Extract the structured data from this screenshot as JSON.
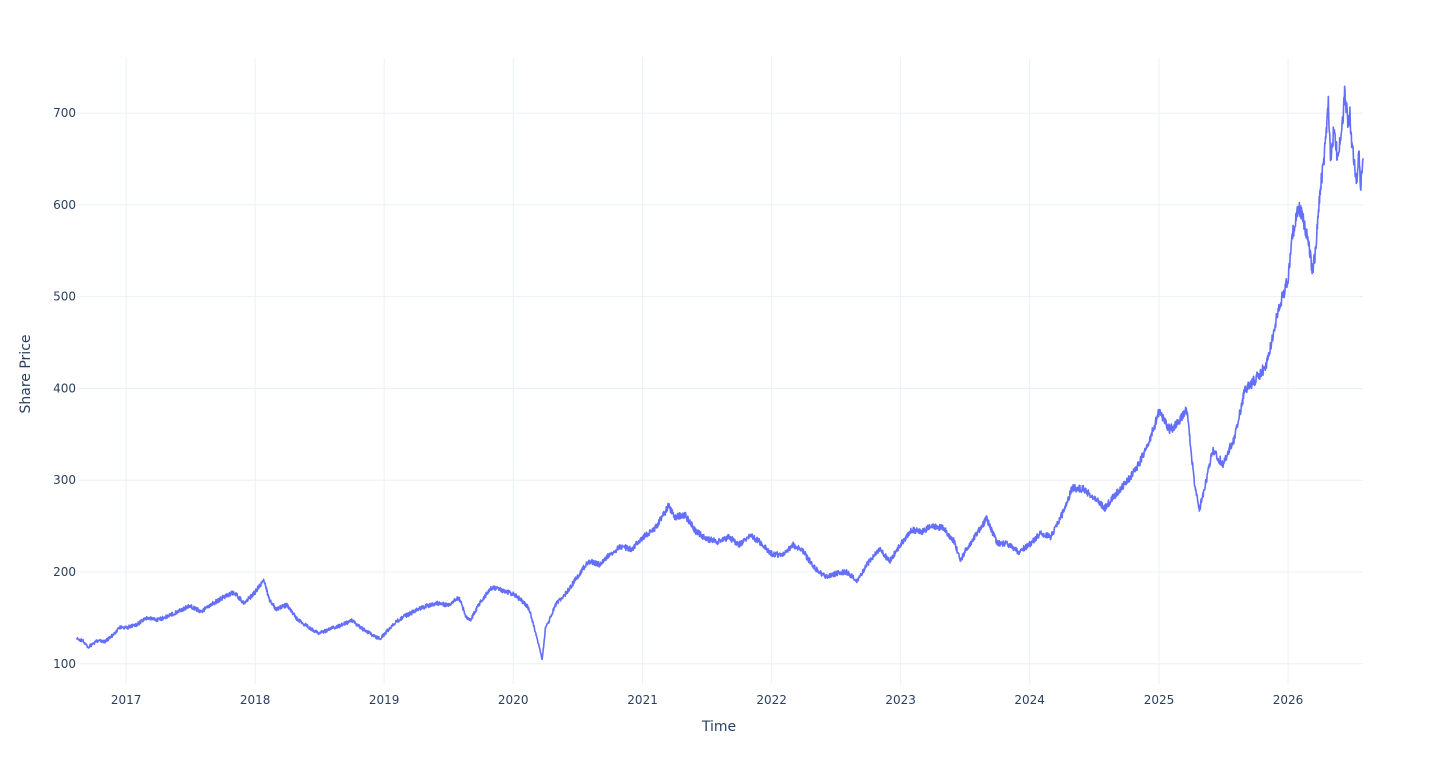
{
  "colors": {
    "series": "#636efa",
    "grid": "#ebf0f8",
    "text": "#2a3f5f",
    "background": "#ffffff"
  },
  "chart_data": {
    "type": "line",
    "title": "",
    "xlabel": "Time",
    "ylabel": "Share Price",
    "grid": true,
    "legend": "none",
    "x_ticks": [
      "2017",
      "2018",
      "2019",
      "2020",
      "2021",
      "2022",
      "2023",
      "2024",
      "2025",
      "2026"
    ],
    "y_ticks": [
      100,
      200,
      300,
      400,
      500,
      600,
      700
    ],
    "xlim": [
      "2016-08-15",
      "2026-08-01"
    ],
    "ylim": [
      78,
      760
    ],
    "series": [
      {
        "name": "",
        "color": "#636efa",
        "x": [
          "2016-08-15",
          "2016-09-01",
          "2016-09-15",
          "2016-10-01",
          "2016-10-15",
          "2016-11-01",
          "2016-11-15",
          "2016-12-01",
          "2016-12-15",
          "2017-01-01",
          "2017-02-01",
          "2017-03-01",
          "2017-04-01",
          "2017-05-01",
          "2017-06-01",
          "2017-07-01",
          "2017-08-01",
          "2017-09-01",
          "2017-10-01",
          "2017-11-01",
          "2017-12-01",
          "2018-01-01",
          "2018-01-25",
          "2018-02-10",
          "2018-03-01",
          "2018-04-01",
          "2018-05-01",
          "2018-06-01",
          "2018-07-01",
          "2018-08-01",
          "2018-09-01",
          "2018-10-01",
          "2018-11-01",
          "2018-12-01",
          "2018-12-20",
          "2019-01-15",
          "2019-02-01",
          "2019-03-01",
          "2019-04-01",
          "2019-05-01",
          "2019-06-01",
          "2019-07-01",
          "2019-08-01",
          "2019-08-20",
          "2019-09-01",
          "2019-10-01",
          "2019-11-01",
          "2019-12-01",
          "2020-01-01",
          "2020-01-15",
          "2020-02-01",
          "2020-02-15",
          "2020-03-01",
          "2020-03-15",
          "2020-03-23",
          "2020-04-01",
          "2020-04-15",
          "2020-05-01",
          "2020-06-01",
          "2020-07-01",
          "2020-08-01",
          "2020-09-01",
          "2020-10-01",
          "2020-11-01",
          "2020-12-01",
          "2021-01-01",
          "2021-02-01",
          "2021-03-01",
          "2021-03-15",
          "2021-04-01",
          "2021-05-01",
          "2021-06-01",
          "2021-07-01",
          "2021-08-01",
          "2021-09-01",
          "2021-10-01",
          "2021-11-01",
          "2021-12-01",
          "2022-01-01",
          "2022-02-01",
          "2022-03-01",
          "2022-04-01",
          "2022-05-01",
          "2022-06-01",
          "2022-07-01",
          "2022-08-01",
          "2022-09-01",
          "2022-10-01",
          "2022-11-01",
          "2022-12-01",
          "2023-01-01",
          "2023-02-01",
          "2023-03-01",
          "2023-04-01",
          "2023-05-01",
          "2023-06-01",
          "2023-06-20",
          "2023-07-01",
          "2023-08-01",
          "2023-09-01",
          "2023-10-01",
          "2023-11-01",
          "2023-12-01",
          "2024-01-01",
          "2024-02-01",
          "2024-03-01",
          "2024-04-01",
          "2024-05-01",
          "2024-06-01",
          "2024-07-01",
          "2024-08-01",
          "2024-09-01",
          "2024-10-01",
          "2024-11-01",
          "2024-12-01",
          "2025-01-01",
          "2025-02-01",
          "2025-03-01",
          "2025-03-20",
          "2025-04-01",
          "2025-04-10",
          "2025-04-25",
          "2025-05-10",
          "2025-06-01",
          "2025-07-01",
          "2025-08-01",
          "2025-09-01",
          "2025-10-01",
          "2025-11-01",
          "2025-12-01",
          "2026-01-01",
          "2026-01-15",
          "2026-02-01",
          "2026-02-15",
          "2026-03-01",
          "2026-03-10",
          "2026-03-20",
          "2026-04-01",
          "2026-04-15",
          "2026-04-25",
          "2026-05-01",
          "2026-05-10",
          "2026-05-20",
          "2026-06-01",
          "2026-06-10",
          "2026-06-20",
          "2026-06-25",
          "2026-07-01",
          "2026-07-10",
          "2026-07-15",
          "2026-07-20",
          "2026-07-25",
          "2026-08-01"
        ],
        "y": [
          127,
          125,
          118,
          122,
          126,
          124,
          128,
          134,
          140,
          139,
          143,
          150,
          148,
          152,
          158,
          163,
          157,
          165,
          172,
          178,
          166,
          178,
          191,
          170,
          160,
          164,
          148,
          140,
          133,
          138,
          142,
          147,
          138,
          131,
          127,
          138,
          145,
          152,
          158,
          163,
          166,
          164,
          172,
          152,
          147,
          168,
          183,
          180,
          176,
          172,
          166,
          160,
          138,
          118,
          104,
          138,
          150,
          165,
          178,
          195,
          212,
          208,
          220,
          228,
          225,
          238,
          245,
          262,
          272,
          260,
          262,
          244,
          236,
          233,
          238,
          230,
          240,
          232,
          220,
          218,
          230,
          222,
          205,
          195,
          198,
          200,
          190,
          210,
          225,
          212,
          230,
          246,
          244,
          250,
          248,
          234,
          212,
          222,
          240,
          258,
          232,
          230,
          222,
          230,
          242,
          238,
          262,
          292,
          290,
          282,
          270,
          285,
          298,
          315,
          338,
          375,
          355,
          365,
          380,
          335,
          300,
          268,
          292,
          332,
          318,
          345,
          398,
          410,
          425,
          480,
          520,
          570,
          598,
          580,
          560,
          525,
          550,
          612,
          660,
          710,
          648,
          680,
          655,
          672,
          720,
          690,
          700,
          660,
          640,
          620,
          665,
          615,
          650
        ]
      }
    ]
  }
}
